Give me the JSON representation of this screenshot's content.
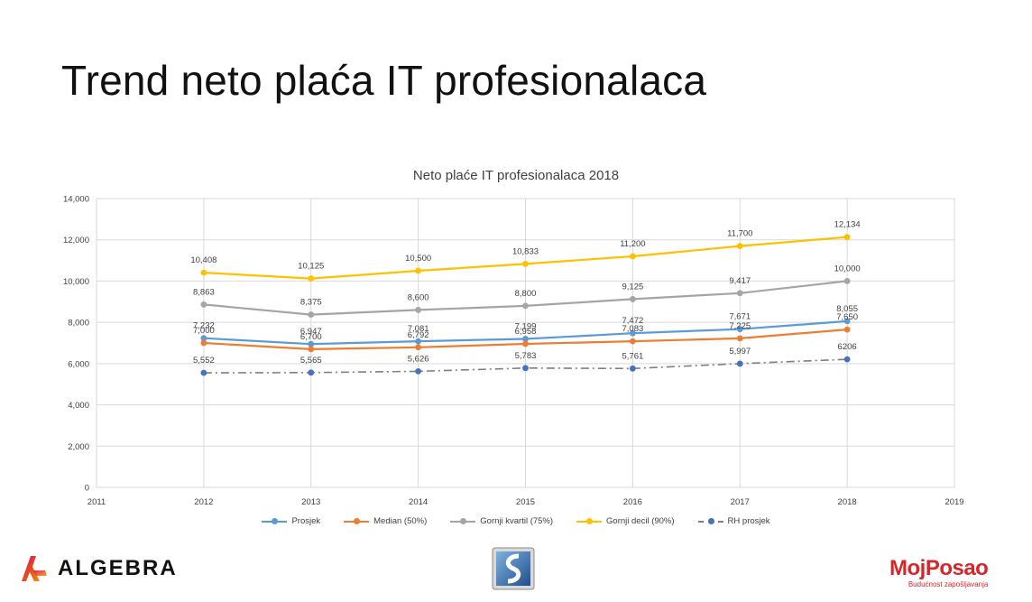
{
  "slide": {
    "title": "Trend neto plaća IT profesionalaca"
  },
  "chart_data": {
    "type": "line",
    "title": "Neto plaće IT profesionalaca 2018",
    "x_ticks": [
      "2011",
      "2012",
      "2013",
      "2014",
      "2015",
      "2016",
      "2017",
      "2018",
      "2019"
    ],
    "xlim": [
      2011,
      2019
    ],
    "y_ticks": [
      "0",
      "2,000",
      "4,000",
      "6,000",
      "8,000",
      "10,000",
      "12,000",
      "14,000"
    ],
    "ylim": [
      0,
      14000
    ],
    "grid": true,
    "legend_position": "bottom",
    "x": [
      2012,
      2013,
      2014,
      2015,
      2016,
      2017,
      2018
    ],
    "series": [
      {
        "name": "Prosjek",
        "color": "#5b9bd5",
        "style": "solid",
        "values": [
          7232,
          6947,
          7081,
          7199,
          7472,
          7671,
          8055
        ],
        "labels": [
          "7,232",
          "6,947",
          "7,081",
          "7,199",
          "7,472",
          "7,671",
          "8,055"
        ]
      },
      {
        "name": "Median (50%)",
        "color": "#ed7d31",
        "style": "solid",
        "values": [
          7000,
          6700,
          6792,
          6958,
          7083,
          7225,
          7650
        ],
        "labels": [
          "7,000",
          "6,700",
          "6,792",
          "6,958",
          "7,083",
          "7,225",
          "7,650"
        ]
      },
      {
        "name": "Gornji kvartil (75%)",
        "color": "#a5a5a5",
        "style": "solid",
        "values": [
          8863,
          8375,
          8600,
          8800,
          9125,
          9417,
          10000
        ],
        "labels": [
          "8,863",
          "8,375",
          "8,600",
          "8,800",
          "9,125",
          "9,417",
          "10,000"
        ]
      },
      {
        "name": "Gornji decil (90%)",
        "color": "#ffc000",
        "style": "solid",
        "values": [
          10408,
          10125,
          10500,
          10833,
          11200,
          11700,
          12134
        ],
        "labels": [
          "10,408",
          "10,125",
          "10,500",
          "10,833",
          "11,200",
          "11,700",
          "12,134"
        ]
      },
      {
        "name": "RH prosjek",
        "color": "#7f7f7f",
        "marker_color": "#4472c4",
        "style": "dashdot",
        "values": [
          5552,
          5565,
          5626,
          5783,
          5761,
          5997,
          6206
        ],
        "labels": [
          "5,552",
          "5,565",
          "5,626",
          "5,783",
          "5,761",
          "5,997",
          "6206"
        ]
      }
    ]
  },
  "logos": {
    "left": "ALGEBRA",
    "right": "MojPosao",
    "right_tagline": "Budućnost zapošljavanja"
  }
}
